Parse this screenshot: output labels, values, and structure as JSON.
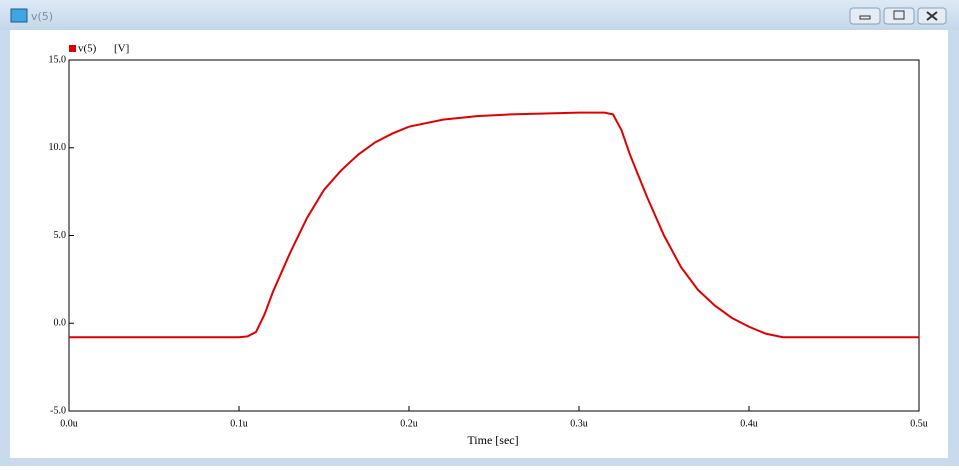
{
  "window": {
    "title": "v(5)"
  },
  "chart_data": {
    "type": "line",
    "x_label": "Time [sec]",
    "y_unit": "[V]",
    "x": [
      0,
      1e-07,
      1.05e-07,
      1.1e-07,
      1.15e-07,
      1.2e-07,
      1.3e-07,
      1.4e-07,
      1.5e-07,
      1.6e-07,
      1.7e-07,
      1.8e-07,
      1.9e-07,
      2e-07,
      2.2e-07,
      2.4e-07,
      2.6e-07,
      2.8e-07,
      3e-07,
      3.15e-07,
      3.2e-07,
      3.25e-07,
      3.3e-07,
      3.4e-07,
      3.5e-07,
      3.6e-07,
      3.7e-07,
      3.8e-07,
      3.9e-07,
      4e-07,
      4.1e-07,
      4.2e-07,
      5e-07
    ],
    "series": [
      {
        "name": "v(5)",
        "color": "#e00000",
        "values": [
          -0.8,
          -0.8,
          -0.75,
          -0.5,
          0.5,
          1.8,
          4.0,
          6.0,
          7.6,
          8.7,
          9.6,
          10.3,
          10.8,
          11.2,
          11.6,
          11.8,
          11.9,
          11.95,
          12.0,
          12.0,
          11.9,
          11.0,
          9.6,
          7.2,
          5.0,
          3.2,
          1.9,
          1.0,
          0.3,
          -0.2,
          -0.6,
          -0.8,
          -0.8
        ]
      }
    ],
    "xlim": [
      0,
      5e-07
    ],
    "xticks": [
      {
        "value": 0,
        "label": "0.0u"
      },
      {
        "value": 1e-07,
        "label": "0.1u"
      },
      {
        "value": 2e-07,
        "label": "0.2u"
      },
      {
        "value": 3e-07,
        "label": "0.3u"
      },
      {
        "value": 4e-07,
        "label": "0.4u"
      },
      {
        "value": 5e-07,
        "label": "0.5u"
      }
    ],
    "ylim": [
      -5,
      15
    ],
    "yticks": [
      {
        "value": -5,
        "label": "-5.0"
      },
      {
        "value": 0,
        "label": "0.0"
      },
      {
        "value": 5,
        "label": "5.0"
      },
      {
        "value": 10,
        "label": "10.0"
      },
      {
        "value": 15,
        "label": "15.0"
      }
    ]
  }
}
